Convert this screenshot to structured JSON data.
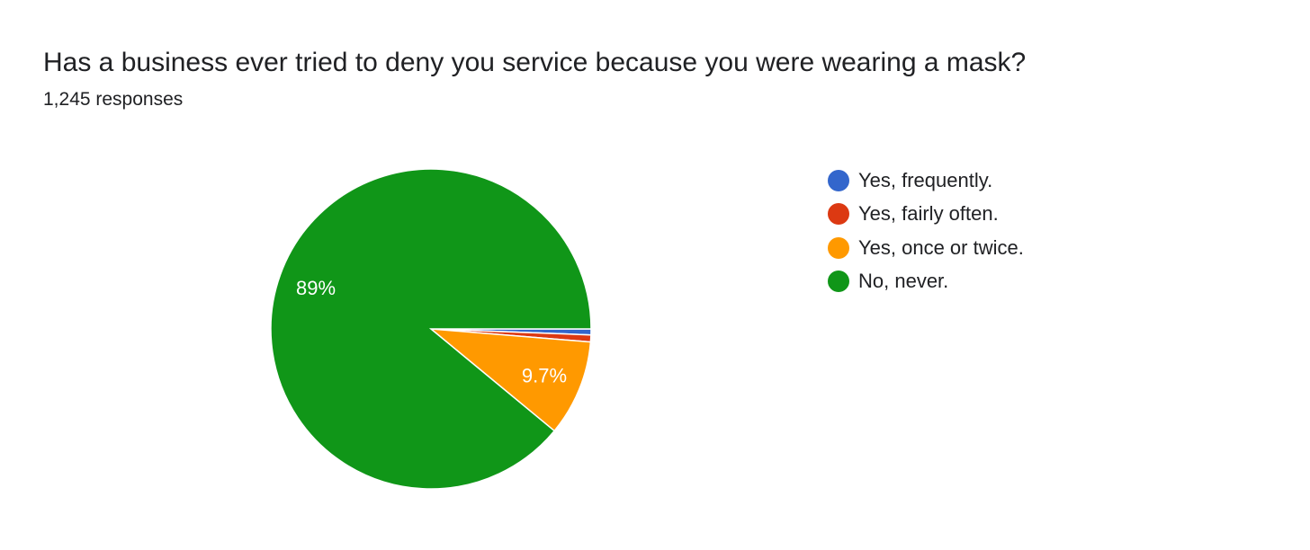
{
  "title": "Has a business ever tried to deny you service because you were wearing a mask?",
  "subtitle": "1,245 responses",
  "chart_data": {
    "type": "pie",
    "title": "Has a business ever tried to deny you service because you were wearing a mask?",
    "response_count": "1,245 responses",
    "legend_position": "right",
    "start_angle_deg": 90,
    "direction": "clockwise",
    "slices": [
      {
        "label": "Yes, frequently.",
        "value": 0.6,
        "color": "#3366cc",
        "data_label": ""
      },
      {
        "label": "Yes, fairly often.",
        "value": 0.7,
        "color": "#dc3912",
        "data_label": ""
      },
      {
        "label": "Yes, once or twice.",
        "value": 9.7,
        "color": "#ff9900",
        "data_label": "9.7%"
      },
      {
        "label": "No, never.",
        "value": 89.0,
        "color": "#109618",
        "data_label": "89%"
      }
    ]
  }
}
